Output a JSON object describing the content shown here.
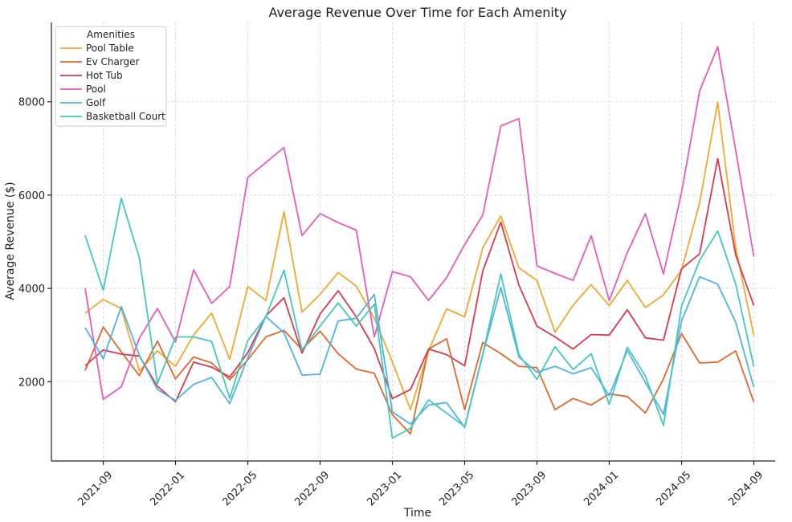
{
  "chart_data": {
    "type": "line",
    "title": "Average Revenue Over Time for Each Amenity",
    "xlabel": "Time",
    "ylabel": "Average Revenue ($)",
    "ylim": [
      300,
      9700
    ],
    "grid": true,
    "legend_title": "Amenities",
    "legend_position": "top-left",
    "x": [
      "2021-08",
      "2021-09",
      "2021-10",
      "2021-11",
      "2021-12",
      "2022-01",
      "2022-02",
      "2022-03",
      "2022-04",
      "2022-05",
      "2022-06",
      "2022-07",
      "2022-08",
      "2022-09",
      "2022-10",
      "2022-11",
      "2022-12",
      "2023-01",
      "2023-02",
      "2023-03",
      "2023-04",
      "2023-05",
      "2023-06",
      "2023-07",
      "2023-08",
      "2023-09",
      "2023-10",
      "2023-11",
      "2023-12",
      "2024-01",
      "2024-02",
      "2024-03",
      "2024-04",
      "2024-05",
      "2024-06",
      "2024-07",
      "2024-08",
      "2024-09"
    ],
    "x_ticks": [
      "2021-09",
      "2022-01",
      "2022-05",
      "2022-09",
      "2023-01",
      "2023-05",
      "2023-09",
      "2024-01",
      "2024-05",
      "2024-09"
    ],
    "y_ticks": [
      2000,
      4000,
      6000,
      8000
    ],
    "series": [
      {
        "name": "Pool Table",
        "color": "#f0a830",
        "values": [
          3470,
          3760,
          3570,
          2230,
          2660,
          2330,
          3000,
          3470,
          2480,
          4040,
          3740,
          5640,
          3490,
          3870,
          4340,
          4050,
          3360,
          2430,
          1400,
          2660,
          3560,
          3390,
          4870,
          5550,
          4440,
          4170,
          3060,
          3640,
          4080,
          3630,
          4170,
          3590,
          3860,
          4390,
          5830,
          7990,
          4860,
          2990
        ]
      },
      {
        "name": "Ev Charger",
        "color": "#e06a2e",
        "values": [
          2240,
          3170,
          2640,
          2130,
          2870,
          2060,
          2530,
          2400,
          2040,
          2470,
          2960,
          3100,
          2690,
          3080,
          2600,
          2270,
          2180,
          1290,
          880,
          2700,
          2920,
          1400,
          2840,
          2600,
          2330,
          2300,
          1400,
          1640,
          1500,
          1740,
          1680,
          1330,
          2060,
          3030,
          2400,
          2420,
          2660,
          1560
        ]
      },
      {
        "name": "Hot Tub",
        "color": "#d93a4e",
        "values": [
          2340,
          2680,
          2590,
          2550,
          1900,
          1570,
          2420,
          2310,
          2100,
          2620,
          3410,
          3800,
          2610,
          3450,
          3950,
          3390,
          2710,
          1640,
          1830,
          2700,
          2580,
          2340,
          4370,
          5420,
          4070,
          3190,
          2960,
          2700,
          3010,
          3000,
          3540,
          2940,
          2890,
          4420,
          4740,
          6780,
          4710,
          3630
        ]
      },
      {
        "name": "Pool",
        "color": "#e55cbb",
        "values": [
          4000,
          1620,
          1890,
          2930,
          3570,
          2850,
          4400,
          3680,
          4040,
          6380,
          6700,
          7020,
          5130,
          5600,
          5410,
          5250,
          2960,
          4360,
          4250,
          3740,
          4230,
          4940,
          5570,
          7480,
          7640,
          4480,
          4320,
          4170,
          5130,
          3740,
          4770,
          5600,
          4310,
          6060,
          8230,
          9180,
          6950,
          4680
        ]
      },
      {
        "name": "Golf",
        "color": "#4fb3e6",
        "values": [
          3160,
          2490,
          3610,
          2560,
          1830,
          1600,
          1940,
          2090,
          1530,
          2510,
          3400,
          3050,
          2140,
          2160,
          3300,
          3360,
          3870,
          1350,
          1090,
          1500,
          1550,
          1020,
          2580,
          4020,
          2530,
          2200,
          2330,
          2170,
          2300,
          1700,
          2670,
          1980,
          1300,
          3300,
          4250,
          4090,
          3270,
          1880
        ]
      },
      {
        "name": "Basketball Court",
        "color": "#45c7bf",
        "values": [
          5140,
          3960,
          5930,
          4650,
          1960,
          2960,
          2960,
          2860,
          1650,
          2880,
          3390,
          4390,
          2680,
          3190,
          3690,
          3190,
          3660,
          790,
          1000,
          1610,
          null,
          1040,
          2590,
          4310,
          2580,
          2050,
          2750,
          2260,
          2600,
          1510,
          2740,
          2120,
          1060,
          3620,
          4600,
          5230,
          4090,
          2320
        ]
      }
    ]
  }
}
